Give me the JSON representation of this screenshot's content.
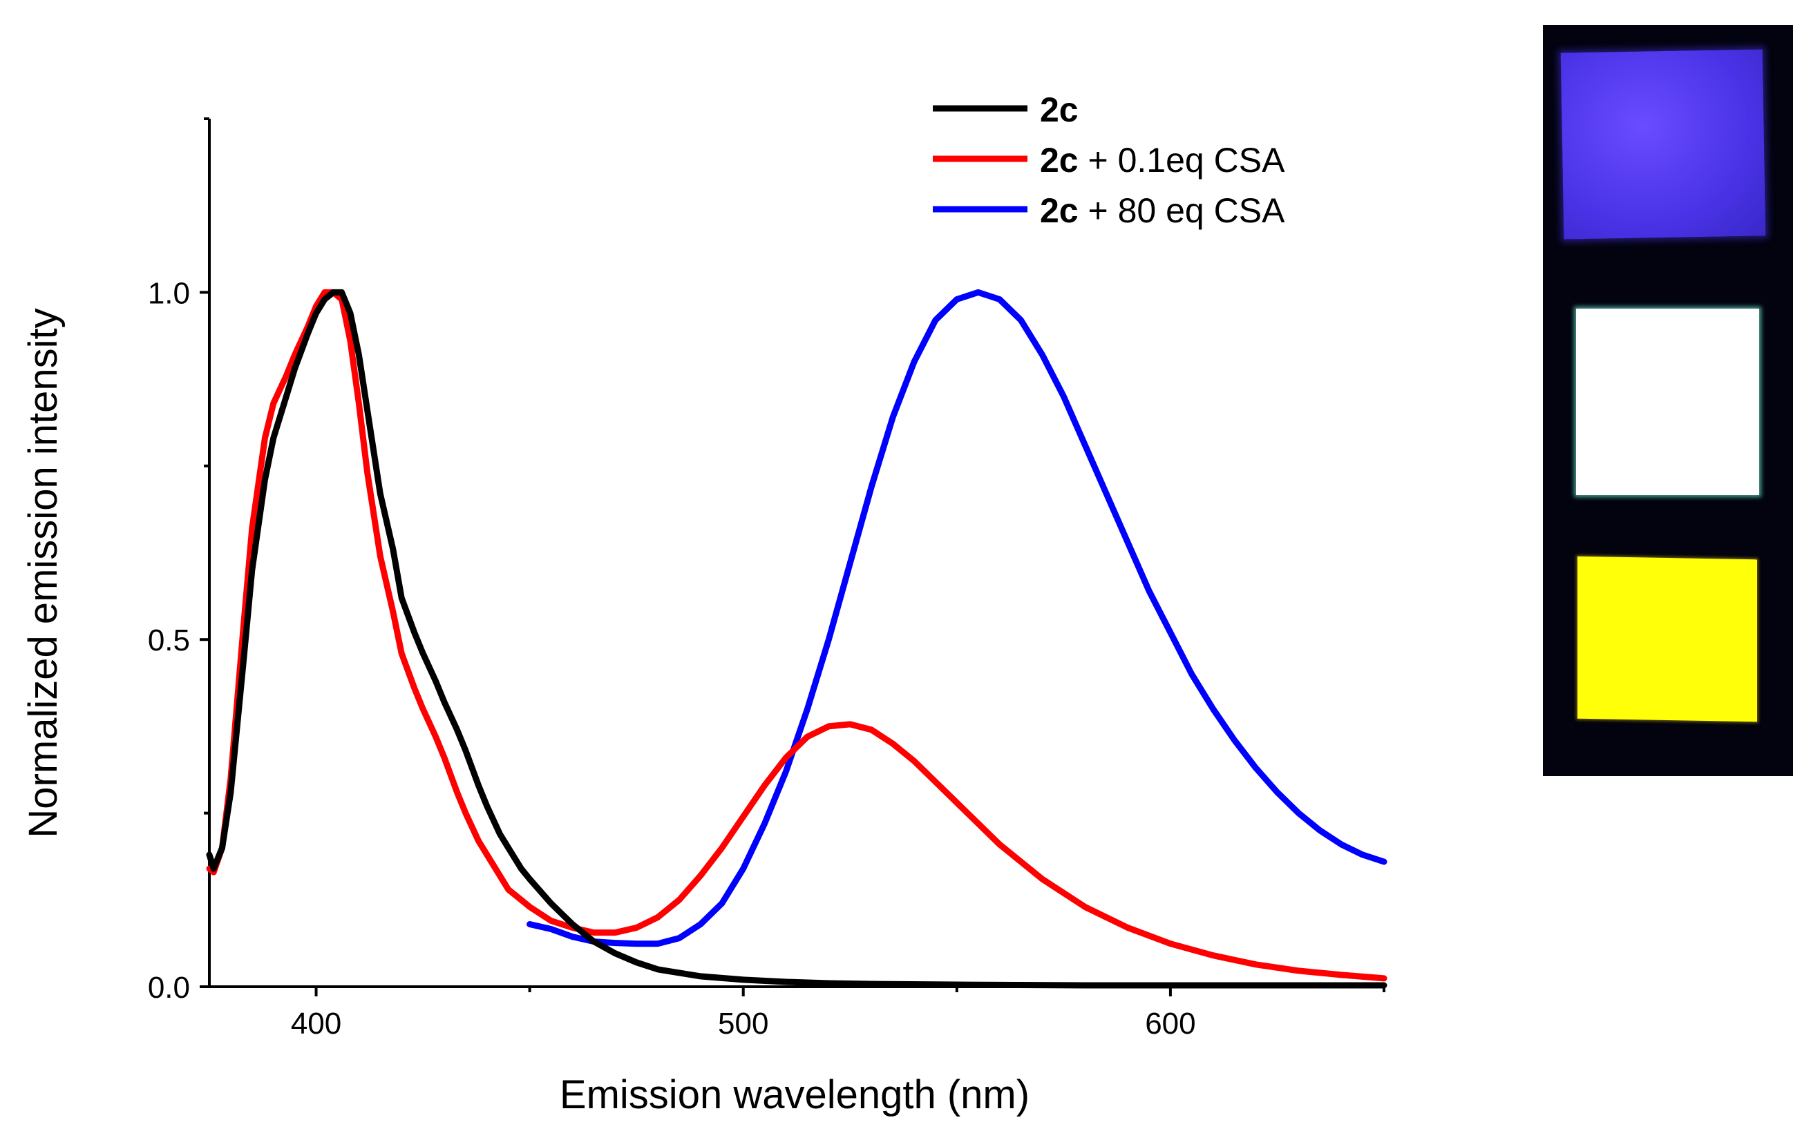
{
  "chart_data": {
    "type": "line",
    "title": "",
    "xlabel": "Emission wavelength (nm)",
    "ylabel": "Normalized emission intensity",
    "xlim": [
      375,
      650
    ],
    "ylim": [
      0.0,
      1.25
    ],
    "x_ticks": [
      400,
      500,
      600
    ],
    "x_tick_labels": [
      "400",
      "500",
      "600"
    ],
    "y_ticks": [
      0.0,
      0.5,
      1.0
    ],
    "y_tick_labels": [
      "0.0",
      "0.5",
      "1.0"
    ],
    "legend_position": "top-center",
    "series": [
      {
        "name": "2c",
        "legend_bold": "2c",
        "legend_rest": "",
        "color": "#000000",
        "x": [
          375,
          376,
          378,
          380,
          383,
          385,
          388,
          390,
          393,
          395,
          398,
          400,
          402,
          404,
          406,
          408,
          410,
          412,
          415,
          418,
          420,
          423,
          425,
          428,
          430,
          433,
          435,
          438,
          440,
          443,
          445,
          448,
          450,
          455,
          460,
          465,
          470,
          475,
          480,
          490,
          500,
          510,
          520,
          530,
          550,
          580,
          600,
          620,
          650
        ],
        "y": [
          0.19,
          0.17,
          0.2,
          0.28,
          0.47,
          0.6,
          0.73,
          0.79,
          0.85,
          0.89,
          0.94,
          0.97,
          0.99,
          1.0,
          1.0,
          0.97,
          0.91,
          0.83,
          0.71,
          0.63,
          0.56,
          0.51,
          0.48,
          0.44,
          0.41,
          0.37,
          0.34,
          0.29,
          0.26,
          0.22,
          0.2,
          0.17,
          0.155,
          0.12,
          0.09,
          0.065,
          0.048,
          0.035,
          0.025,
          0.015,
          0.01,
          0.007,
          0.005,
          0.004,
          0.003,
          0.002,
          0.002,
          0.002,
          0.002
        ]
      },
      {
        "name": "2c + 0.1eq CSA",
        "legend_bold": "2c",
        "legend_rest": " + 0.1eq CSA",
        "color": "#ff0000",
        "x": [
          375,
          376,
          378,
          380,
          383,
          385,
          388,
          390,
          393,
          395,
          398,
          400,
          402,
          404,
          406,
          408,
          410,
          412,
          415,
          418,
          420,
          423,
          425,
          428,
          430,
          433,
          435,
          438,
          440,
          443,
          445,
          448,
          450,
          455,
          460,
          465,
          470,
          475,
          480,
          485,
          490,
          495,
          500,
          505,
          510,
          515,
          520,
          525,
          530,
          535,
          540,
          545,
          550,
          560,
          570,
          580,
          590,
          600,
          610,
          620,
          630,
          640,
          650
        ],
        "y": [
          0.17,
          0.165,
          0.2,
          0.3,
          0.52,
          0.66,
          0.79,
          0.84,
          0.88,
          0.91,
          0.95,
          0.98,
          1.0,
          1.0,
          0.99,
          0.93,
          0.84,
          0.74,
          0.62,
          0.54,
          0.48,
          0.43,
          0.4,
          0.36,
          0.33,
          0.28,
          0.25,
          0.21,
          0.19,
          0.16,
          0.14,
          0.125,
          0.115,
          0.095,
          0.085,
          0.078,
          0.078,
          0.085,
          0.1,
          0.125,
          0.16,
          0.2,
          0.245,
          0.29,
          0.33,
          0.36,
          0.375,
          0.378,
          0.37,
          0.35,
          0.325,
          0.295,
          0.265,
          0.205,
          0.155,
          0.115,
          0.085,
          0.062,
          0.045,
          0.032,
          0.023,
          0.017,
          0.012
        ]
      },
      {
        "name": "2c + 80 eq CSA",
        "legend_bold": "2c",
        "legend_rest": " + 80 eq CSA",
        "color": "#0000ff",
        "x": [
          450,
          455,
          460,
          465,
          470,
          475,
          480,
          485,
          490,
          495,
          500,
          505,
          510,
          515,
          520,
          525,
          530,
          535,
          540,
          545,
          550,
          555,
          560,
          565,
          570,
          575,
          580,
          585,
          590,
          595,
          600,
          605,
          610,
          615,
          620,
          625,
          630,
          635,
          640,
          645,
          650
        ],
        "y": [
          0.09,
          0.083,
          0.072,
          0.065,
          0.063,
          0.062,
          0.062,
          0.07,
          0.09,
          0.12,
          0.17,
          0.235,
          0.31,
          0.4,
          0.5,
          0.61,
          0.72,
          0.82,
          0.9,
          0.96,
          0.99,
          1.0,
          0.99,
          0.96,
          0.91,
          0.85,
          0.78,
          0.71,
          0.64,
          0.57,
          0.51,
          0.45,
          0.4,
          0.355,
          0.315,
          0.28,
          0.25,
          0.225,
          0.205,
          0.19,
          0.18
        ]
      }
    ]
  },
  "photo_panel": {
    "description_names": [
      "violet-emission-film",
      "white-emission-film",
      "yellow-emission-film"
    ]
  }
}
